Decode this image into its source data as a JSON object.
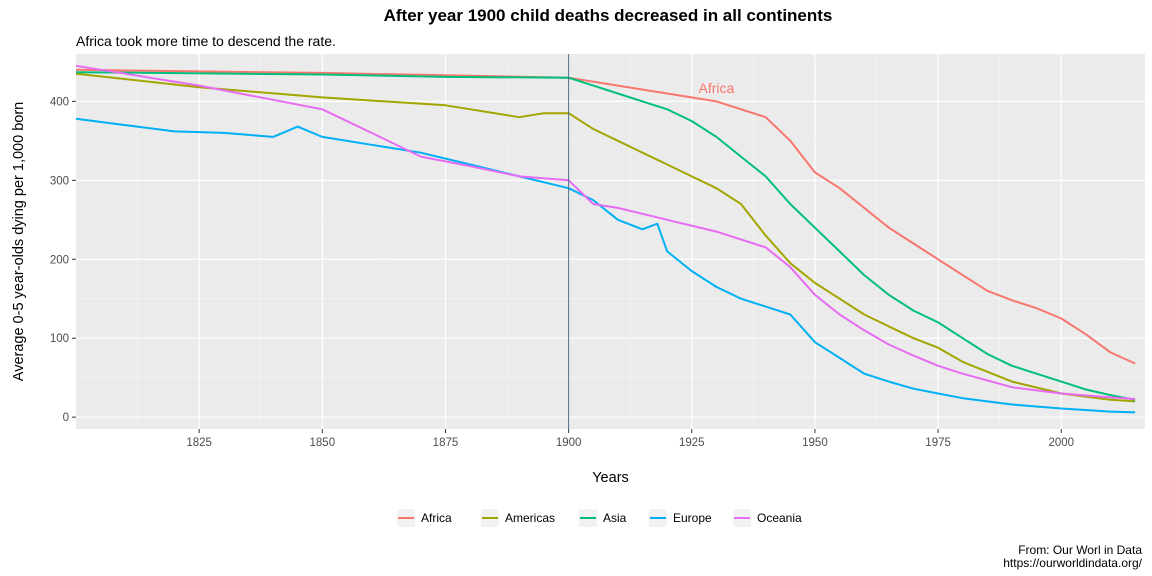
{
  "chart_data": {
    "type": "line",
    "title": "After year 1900 child deaths decreased in all continents",
    "subtitle": "Africa took more time to descend the rate.",
    "xlabel": "Years",
    "ylabel": "Average 0-5 year-olds dying per 1,000 born",
    "caption_lines": [
      "From: Our Worl in Data",
      "https://ourworldindata.org/"
    ],
    "xlim": [
      1800,
      2017
    ],
    "ylim": [
      -15,
      460
    ],
    "x_ticks": [
      1825,
      1850,
      1875,
      1900,
      1925,
      1950,
      1975,
      2000
    ],
    "y_ticks": [
      0,
      100,
      200,
      300,
      400
    ],
    "grid": true,
    "legend_position": "bottom",
    "vline_x": 1900,
    "annotation": {
      "text": "Africa",
      "x": 1930,
      "y": 417,
      "color": "#F8766D"
    },
    "series": [
      {
        "name": "Africa",
        "color": "#F8766D",
        "x": [
          1800,
          1825,
          1850,
          1875,
          1900,
          1910,
          1920,
          1930,
          1940,
          1945,
          1950,
          1955,
          1960,
          1965,
          1970,
          1975,
          1980,
          1985,
          1990,
          1995,
          2000,
          2005,
          2010,
          2015
        ],
        "y": [
          440,
          438,
          436,
          433,
          430,
          420,
          410,
          400,
          380,
          350,
          310,
          290,
          265,
          240,
          220,
          200,
          180,
          160,
          148,
          138,
          125,
          105,
          82,
          68
        ]
      },
      {
        "name": "Americas",
        "color": "#A3A500",
        "x": [
          1800,
          1825,
          1850,
          1875,
          1890,
          1895,
          1900,
          1905,
          1910,
          1915,
          1920,
          1925,
          1930,
          1935,
          1940,
          1945,
          1950,
          1955,
          1960,
          1965,
          1970,
          1975,
          1980,
          1990,
          2000,
          2010,
          2015
        ],
        "y": [
          435,
          418,
          405,
          395,
          380,
          385,
          385,
          365,
          350,
          335,
          320,
          305,
          290,
          270,
          230,
          195,
          170,
          150,
          130,
          115,
          100,
          88,
          70,
          45,
          30,
          22,
          20
        ]
      },
      {
        "name": "Asia",
        "color": "#00BF7D",
        "x": [
          1800,
          1850,
          1875,
          1900,
          1905,
          1910,
          1915,
          1920,
          1925,
          1930,
          1935,
          1940,
          1945,
          1950,
          1955,
          1960,
          1965,
          1970,
          1975,
          1980,
          1985,
          1990,
          1995,
          2000,
          2005,
          2010,
          2015
        ],
        "y": [
          437,
          434,
          431,
          430,
          420,
          410,
          400,
          390,
          375,
          355,
          330,
          305,
          270,
          240,
          210,
          180,
          155,
          135,
          120,
          100,
          80,
          65,
          55,
          45,
          35,
          28,
          22
        ]
      },
      {
        "name": "Europe",
        "color": "#00B0F6",
        "x": [
          1800,
          1810,
          1820,
          1830,
          1840,
          1845,
          1850,
          1860,
          1870,
          1880,
          1890,
          1900,
          1905,
          1910,
          1915,
          1918,
          1920,
          1925,
          1930,
          1935,
          1940,
          1945,
          1950,
          1955,
          1960,
          1965,
          1970,
          1975,
          1980,
          1990,
          2000,
          2010,
          2015
        ],
        "y": [
          378,
          370,
          362,
          360,
          355,
          368,
          355,
          345,
          335,
          320,
          305,
          290,
          275,
          250,
          238,
          245,
          210,
          185,
          165,
          150,
          140,
          130,
          95,
          75,
          55,
          45,
          36,
          30,
          24,
          16,
          11,
          7,
          6
        ]
      },
      {
        "name": "Oceania",
        "color": "#E76BF3",
        "x": [
          1800,
          1825,
          1850,
          1860,
          1870,
          1880,
          1890,
          1900,
          1905,
          1910,
          1920,
          1930,
          1940,
          1945,
          1950,
          1955,
          1960,
          1965,
          1970,
          1975,
          1980,
          1990,
          2000,
          2010,
          2015
        ],
        "y": [
          445,
          420,
          390,
          360,
          330,
          318,
          305,
          300,
          270,
          265,
          250,
          235,
          215,
          190,
          155,
          130,
          110,
          92,
          78,
          65,
          55,
          38,
          30,
          25,
          23
        ]
      }
    ]
  }
}
